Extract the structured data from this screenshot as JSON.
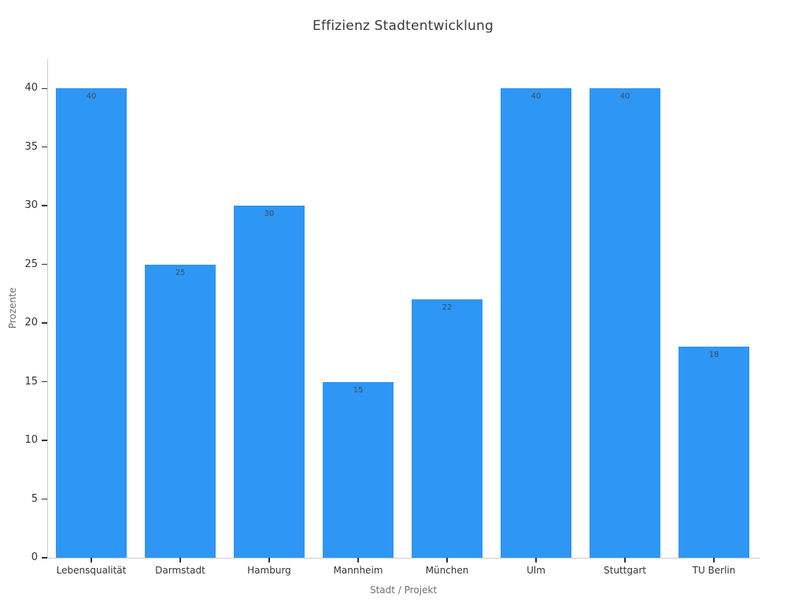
{
  "chart_data": {
    "type": "bar",
    "title": "Effizienz Stadtentwicklung",
    "categories": [
      "Lebensqualität",
      "Darmstadt",
      "Hamburg",
      "Mannheim",
      "München",
      "Ulm",
      "Stuttgart",
      "TU Berlin"
    ],
    "values": [
      40,
      25,
      30,
      15,
      22,
      40,
      40,
      18
    ],
    "value_labels": [
      "40",
      "25",
      "30",
      "15",
      "22",
      "40",
      "40",
      "18"
    ],
    "xlabel": "Stadt / Projekt",
    "ylabel": "Prozente",
    "ylim": [
      0,
      42.5
    ],
    "yticks": [
      0,
      5,
      10,
      15,
      20,
      25,
      30,
      35,
      40
    ],
    "grid": false,
    "legend_shown": false,
    "bar_color": "#2E96F5",
    "value_label_color": "#3f4b5c",
    "axis_spine_color": "#cccccc",
    "tick_color": "#333333",
    "axis_title_color": "#6e6e6e",
    "title_color": "#3a3a3a",
    "background_color": "#ffffff"
  }
}
